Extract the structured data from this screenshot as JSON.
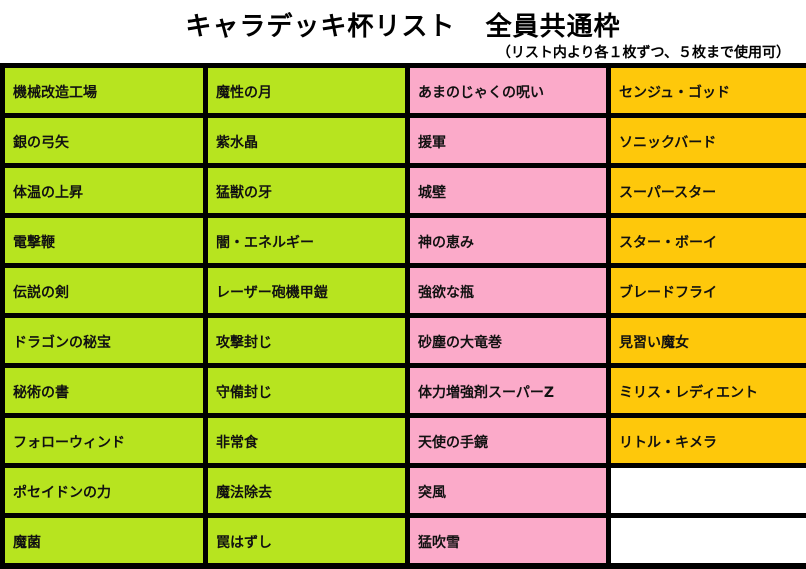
{
  "header": {
    "title_main": "キャラデッキ杯リスト",
    "title_sub": "全員共通枠",
    "note": "（リスト内より各１枚ずつ、５枚まで使用可）"
  },
  "colors": {
    "green": "#b7e41f",
    "pink": "#fbaac9",
    "orange": "#fec80b"
  },
  "columns": [
    {
      "color": "green",
      "items": [
        "機械改造工場",
        "銀の弓矢",
        "体温の上昇",
        "電撃鞭",
        "伝説の剣",
        "ドラゴンの秘宝",
        "秘術の書",
        "フォローウィンド",
        "ポセイドンの力",
        "魔菌"
      ]
    },
    {
      "color": "green",
      "items": [
        "魔性の月",
        "紫水晶",
        "猛獣の牙",
        "闇・エネルギー",
        "レーザー砲機甲鎧",
        "攻撃封じ",
        "守備封じ",
        "非常食",
        "魔法除去",
        "罠はずし"
      ]
    },
    {
      "color": "pink",
      "items": [
        "あまのじゃくの呪い",
        "援軍",
        "城壁",
        "神の恵み",
        "強欲な瓶",
        "砂塵の大竜巻",
        "体力増強剤スーパーZ",
        "天使の手鏡",
        "突風",
        "猛吹雪"
      ]
    },
    {
      "color": "orange",
      "items": [
        "センジュ・ゴッド",
        "ソニックバード",
        "スーパースター",
        "スター・ボーイ",
        "ブレードフライ",
        "見習い魔女",
        "ミリス・レディエント",
        "リトル・キメラ",
        "",
        ""
      ]
    }
  ]
}
